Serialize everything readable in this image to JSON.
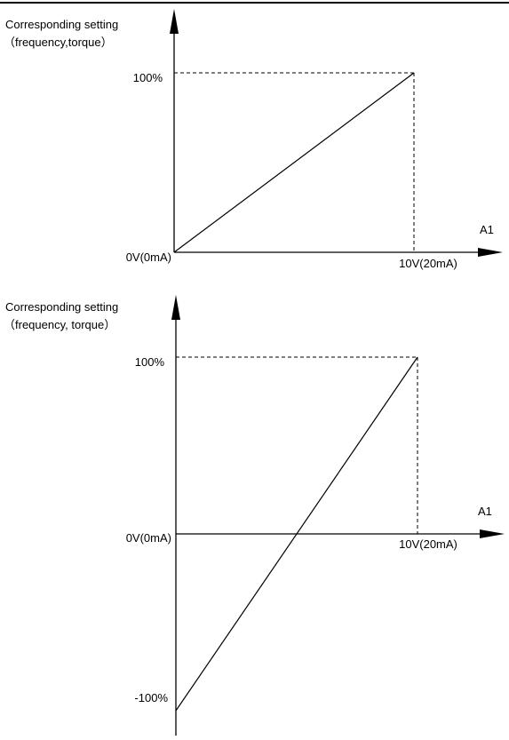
{
  "chart_data": [
    {
      "type": "line",
      "title": "",
      "ylabel": "Corresponding setting",
      "ylabel_sub": "（frequency,torque）",
      "xlabel": "A1",
      "x_tick_labels": [
        "0V(0mA)",
        "10V(20mA)"
      ],
      "y_tick_labels": [
        "100%"
      ],
      "x": [
        0,
        10
      ],
      "ylim": [
        0,
        100
      ],
      "xlim": [
        0,
        10
      ],
      "series": [
        {
          "values": [
            0,
            100
          ]
        }
      ]
    },
    {
      "type": "line",
      "title": "",
      "ylabel": "Corresponding setting",
      "ylabel_sub": "（frequency, torque）",
      "xlabel": "A1",
      "x_tick_labels": [
        "0V(0mA)",
        "10V(20mA)"
      ],
      "y_tick_labels": [
        "100%",
        "-100%"
      ],
      "x": [
        0,
        10
      ],
      "ylim": [
        -100,
        100
      ],
      "xlim": [
        0,
        10
      ],
      "series": [
        {
          "values": [
            -100,
            100
          ]
        }
      ]
    }
  ]
}
